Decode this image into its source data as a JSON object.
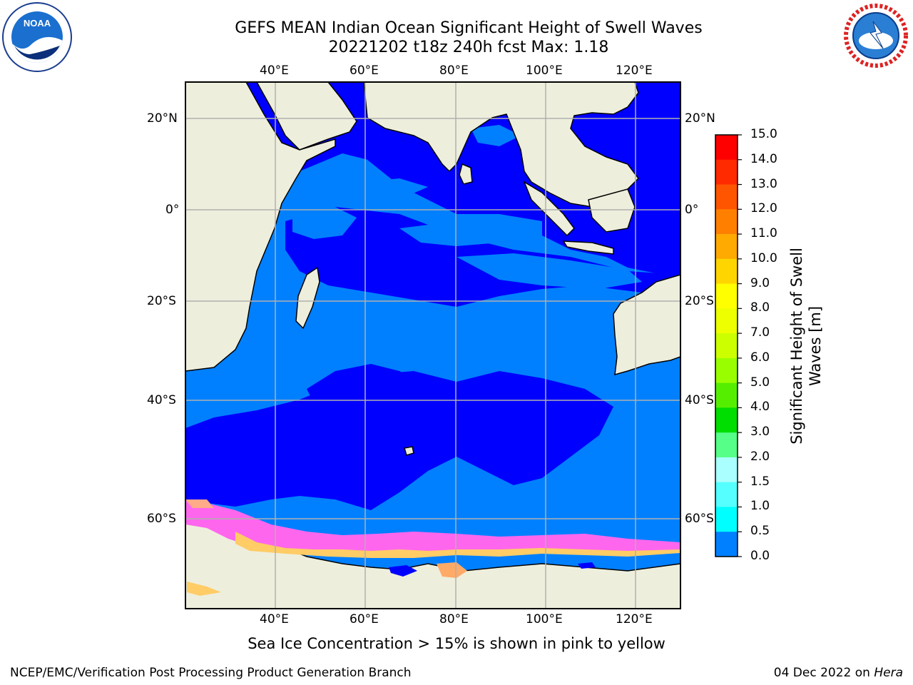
{
  "header": {
    "title_line1": "GEFS MEAN Indian Ocean Significant Height of Swell Waves",
    "title_line2": "20221202 t18z 240h fcst   Max: 1.18"
  },
  "map": {
    "lon_ticks": [
      "40°E",
      "60°E",
      "80°E",
      "100°E",
      "120°E"
    ],
    "lat_ticks": [
      "20°N",
      "0°",
      "20°S",
      "40°S",
      "60°S"
    ],
    "lon_values": [
      40,
      60,
      80,
      100,
      120
    ],
    "lat_values": [
      20,
      0,
      -20,
      -40,
      -60
    ],
    "colors": {
      "land": "#eeeedd",
      "sea_0_0.5": "#0000ff",
      "sea_0.5_1.0": "#0080ff",
      "grid": "#b0b0b0",
      "sea_ice": "#ff55ff"
    }
  },
  "colorbar": {
    "title_line1": "Significant Height of Swell",
    "title_line2": "Waves [m]",
    "labels": [
      "15.0",
      "14.0",
      "13.0",
      "12.0",
      "11.0",
      "10.0",
      "9.0",
      "8.0",
      "7.0",
      "6.0",
      "5.0",
      "4.0",
      "3.0",
      "2.0",
      "1.5",
      "1.0",
      "0.5",
      "0.0"
    ],
    "colors": [
      "#ff0000",
      "#ff2a00",
      "#ff5500",
      "#ff8000",
      "#ffaa00",
      "#ffd500",
      "#ffff00",
      "#eeff00",
      "#ccff00",
      "#99ff00",
      "#55ee00",
      "#00dd00",
      "#55ff88",
      "#aaffff",
      "#55ffff",
      "#00ffff",
      "#0080ff",
      "#0000ff"
    ]
  },
  "footer": {
    "note": "Sea Ice Concentration > 15% is shown in pink to yellow",
    "credit": "NCEP/EMC/Verification Post Processing Product Generation Branch",
    "date": "04 Dec 2022 on",
    "host": "Hera"
  },
  "logos": {
    "noaa_text": "NOAA",
    "nws_text": "NATIONAL WEATHER SERVICE"
  }
}
